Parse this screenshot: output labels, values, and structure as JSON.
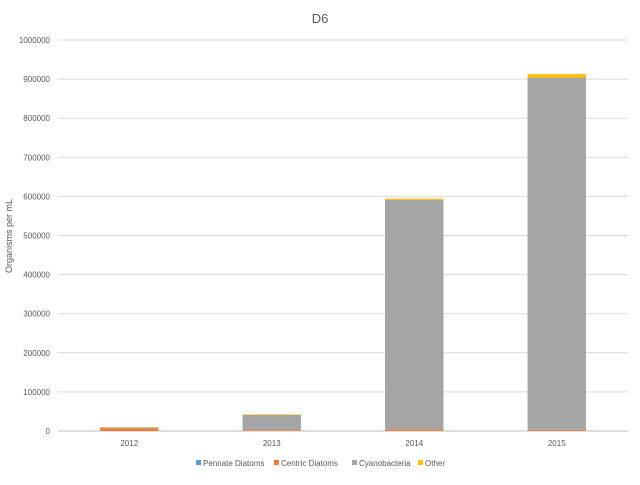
{
  "chart_data": {
    "type": "bar",
    "stacked": true,
    "title": "D6",
    "xlabel": "",
    "ylabel": "Organisms per mL",
    "ylim": [
      0,
      1000000
    ],
    "yticks": [
      0,
      100000,
      200000,
      300000,
      400000,
      500000,
      600000,
      700000,
      800000,
      900000,
      1000000
    ],
    "grid": true,
    "legend_position": "bottom",
    "categories": [
      "2012",
      "2013",
      "2014",
      "2015"
    ],
    "series": [
      {
        "name": "Pennate Diatoms",
        "color": "#5b9bd5",
        "values": [
          200,
          300,
          500,
          400
        ]
      },
      {
        "name": "Centric Diatoms",
        "color": "#ed7d31",
        "values": [
          7000,
          2000,
          4000,
          2500
        ]
      },
      {
        "name": "Cyanobacteria",
        "color": "#a5a5a5",
        "values": [
          2000,
          39000,
          587000,
          901000
        ]
      },
      {
        "name": "Other",
        "color": "#ffc000",
        "values": [
          500,
          1500,
          3000,
          9000
        ]
      }
    ]
  }
}
